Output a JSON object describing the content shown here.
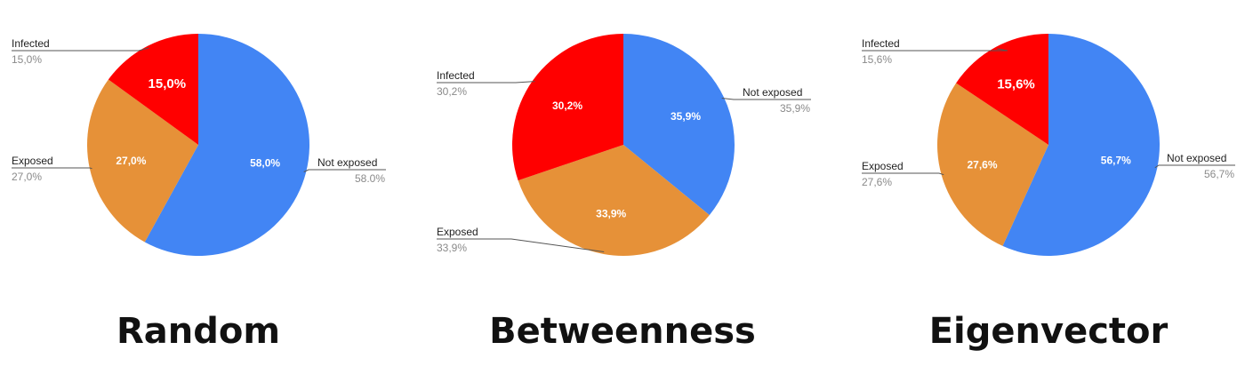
{
  "chart_data": [
    {
      "type": "pie",
      "title": "Random",
      "slices": [
        {
          "label": "Not exposed",
          "value": 58.0,
          "value_label": "58,0%",
          "outside_value": "58.0%",
          "color": "#4285f4"
        },
        {
          "label": "Exposed",
          "value": 27.0,
          "value_label": "27,0%",
          "outside_value": "27,0%",
          "color": "#e69138"
        },
        {
          "label": "Infected",
          "value": 15.0,
          "value_label": "15,0%",
          "outside_value": "15,0%",
          "color": "#ff0000"
        }
      ]
    },
    {
      "type": "pie",
      "title": "Betweenness",
      "slices": [
        {
          "label": "Not exposed",
          "value": 35.9,
          "value_label": "35,9%",
          "outside_value": "35,9%",
          "color": "#4285f4"
        },
        {
          "label": "Exposed",
          "value": 33.9,
          "value_label": "33,9%",
          "outside_value": "33,9%",
          "color": "#e69138"
        },
        {
          "label": "Infected",
          "value": 30.2,
          "value_label": "30,2%",
          "outside_value": "30,2%",
          "color": "#ff0000"
        }
      ]
    },
    {
      "type": "pie",
      "title": "Eigenvector",
      "slices": [
        {
          "label": "Not exposed",
          "value": 56.7,
          "value_label": "56,7%",
          "outside_value": "56,7%",
          "color": "#4285f4"
        },
        {
          "label": "Exposed",
          "value": 27.6,
          "value_label": "27,6%",
          "outside_value": "27,6%",
          "color": "#e69138"
        },
        {
          "label": "Infected",
          "value": 15.6,
          "value_label": "15,6%",
          "outside_value": "15,6%",
          "color": "#ff0000"
        }
      ]
    }
  ]
}
